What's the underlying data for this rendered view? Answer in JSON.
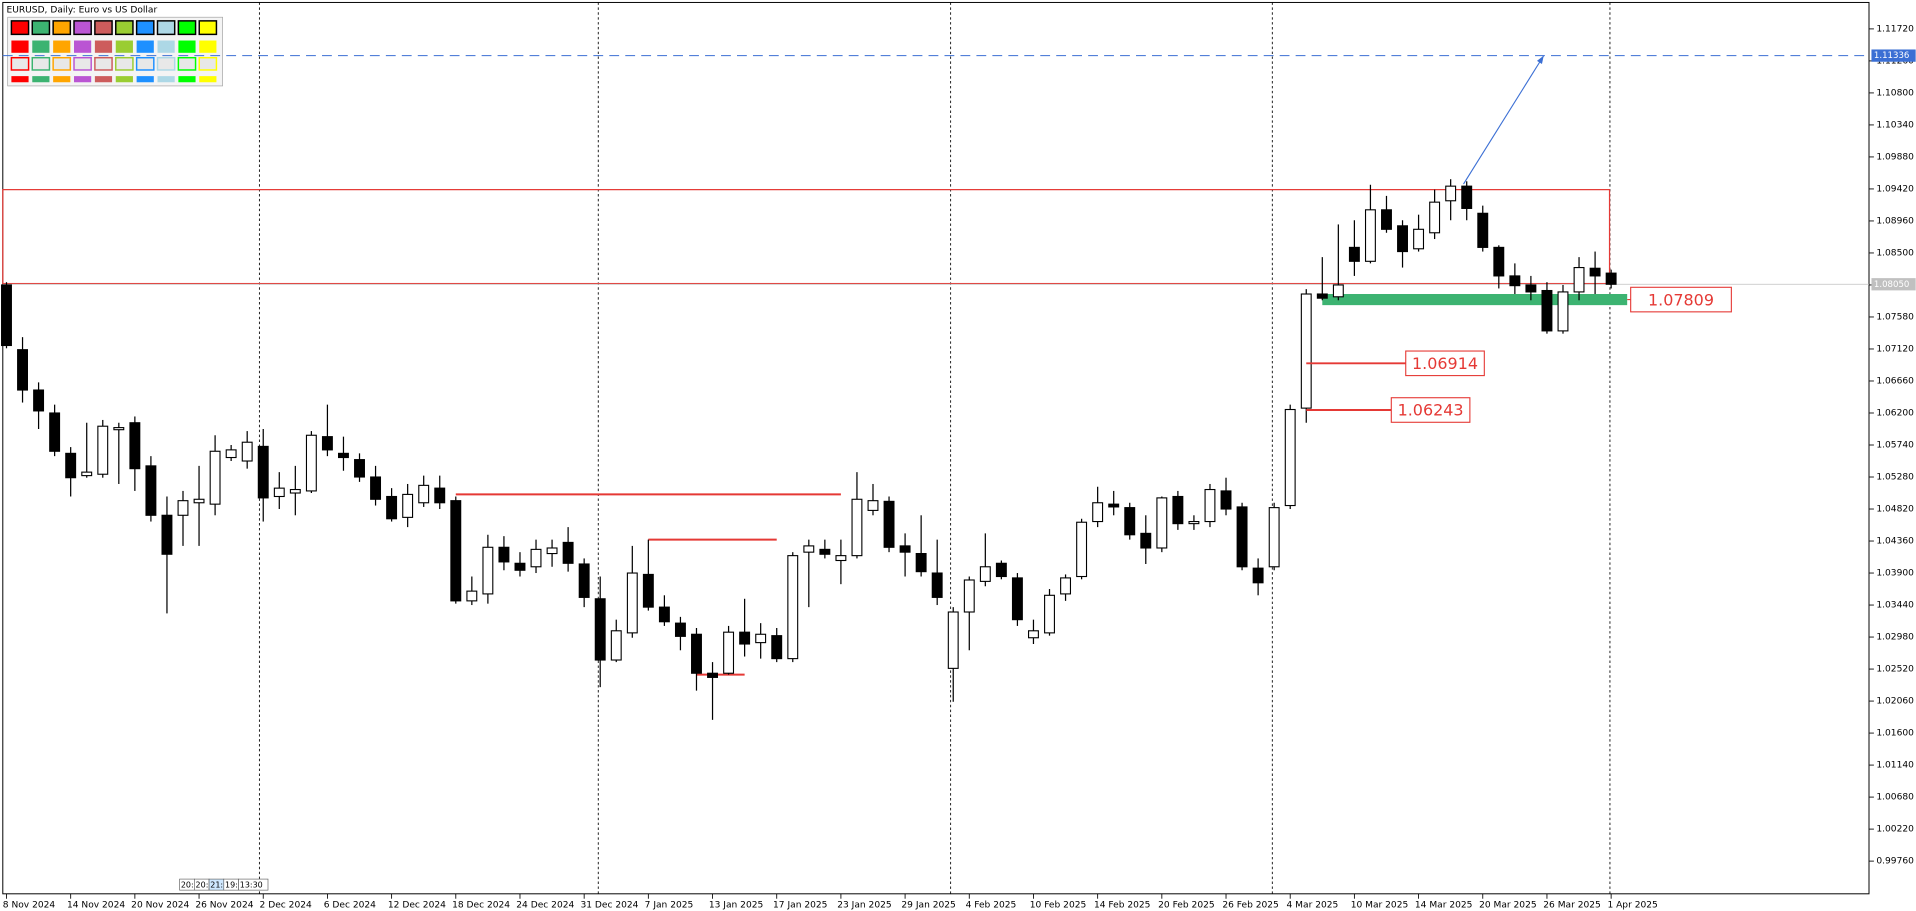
{
  "chart_data": {
    "type": "candlestick",
    "title": "EURUSD, Daily:  Euro vs US Dollar",
    "up_color": "#ffffff",
    "down_color": "#000000",
    "open": [
      1.0804,
      1.0711,
      1.0653,
      1.062,
      1.0562,
      1.053,
      1.0532,
      1.0596,
      1.0606,
      1.0544,
      1.0473,
      1.0473,
      1.0491,
      1.0489,
      1.0556,
      1.0551,
      1.0572,
      1.05,
      1.0505,
      1.0508,
      1.0586,
      1.0562,
      1.0553,
      1.0528,
      1.05,
      1.047,
      1.0491,
      1.0512,
      1.0494,
      1.035,
      1.036,
      1.0427,
      1.0404,
      1.0399,
      1.0418,
      1.0434,
      1.0403,
      1.0353,
      1.0265,
      1.0304,
      1.0388,
      1.0341,
      1.0318,
      1.0302,
      1.0246,
      1.0246,
      1.0305,
      1.029,
      1.03,
      1.0267,
      1.042,
      1.0424,
      1.0408,
      1.0415,
      1.048,
      1.0493,
      1.0429,
      1.0418,
      1.039,
      1.0253,
      1.0334,
      1.0378,
      1.0404,
      1.0383,
      1.0297,
      1.0304,
      1.036,
      1.0385,
      1.0464,
      1.0489,
      1.0484,
      1.0447,
      1.0426,
      1.05,
      1.0461,
      1.0464,
      1.0508,
      1.0485,
      1.0397,
      1.0399,
      1.0487,
      1.0627,
      1.0791,
      1.0787,
      1.0858,
      1.0838,
      1.0912,
      1.0889,
      1.0856,
      1.0879,
      1.0925,
      1.0946,
      1.0907,
      1.0858,
      1.0817,
      1.0804,
      1.0796,
      1.0738,
      1.0794,
      1.0828,
      1.0821
    ],
    "high": [
      1.0808,
      1.0729,
      1.0664,
      1.0632,
      1.0571,
      1.0606,
      1.061,
      1.0606,
      1.0615,
      1.0558,
      1.05,
      1.0508,
      1.0544,
      1.0588,
      1.0574,
      1.0594,
      1.0597,
      1.0535,
      1.0544,
      1.0594,
      1.0632,
      1.0586,
      1.0562,
      1.0544,
      1.0512,
      1.0518,
      1.053,
      1.053,
      1.05,
      1.0385,
      1.0445,
      1.0443,
      1.042,
      1.0438,
      1.0438,
      1.0456,
      1.0411,
      1.0385,
      1.0323,
      1.0429,
      1.0438,
      1.0358,
      1.0327,
      1.0311,
      1.0262,
      1.0314,
      1.0353,
      1.0318,
      1.0311,
      1.042,
      1.0438,
      1.0438,
      1.0438,
      1.0535,
      1.0518,
      1.05,
      1.0447,
      1.0473,
      1.0438,
      1.0341,
      1.0385,
      1.0447,
      1.0408,
      1.039,
      1.0323,
      1.0367,
      1.0388,
      1.0468,
      1.0514,
      1.0508,
      1.0491,
      1.0473,
      1.05,
      1.0508,
      1.0473,
      1.0518,
      1.0527,
      1.0491,
      1.0411,
      1.0491,
      1.0632,
      1.0798,
      1.0844,
      1.0891,
      1.0897,
      1.0948,
      1.0932,
      1.0897,
      1.0905,
      1.0941,
      1.0956,
      1.0953,
      1.0918,
      1.0861,
      1.0835,
      1.0817,
      1.0808,
      1.0804,
      1.0844,
      1.0852,
      1.0826
    ],
    "low": [
      1.0713,
      1.0635,
      1.0597,
      1.0558,
      1.05,
      1.0527,
      1.0527,
      1.0518,
      1.0508,
      1.0464,
      1.0332,
      1.0429,
      1.0429,
      1.0473,
      1.0551,
      1.054,
      1.0464,
      1.0482,
      1.0473,
      1.0505,
      1.0558,
      1.0537,
      1.0521,
      1.0487,
      1.0464,
      1.0456,
      1.0485,
      1.0482,
      1.0346,
      1.0344,
      1.0346,
      1.0394,
      1.0385,
      1.039,
      1.0399,
      1.0392,
      1.0341,
      1.0226,
      1.0262,
      1.0297,
      1.0336,
      1.0314,
      1.0279,
      1.0221,
      1.0179,
      1.0244,
      1.027,
      1.0267,
      1.0262,
      1.0262,
      1.0341,
      1.0411,
      1.0374,
      1.0411,
      1.0473,
      1.042,
      1.0385,
      1.0385,
      1.0344,
      1.0205,
      1.0279,
      1.0371,
      1.0381,
      1.0314,
      1.0288,
      1.03,
      1.035,
      1.0381,
      1.0456,
      1.0473,
      1.0438,
      1.0403,
      1.042,
      1.0452,
      1.0452,
      1.0456,
      1.0473,
      1.0394,
      1.0358,
      1.0394,
      1.0482,
      1.0606,
      1.0782,
      1.0782,
      1.0817,
      1.0835,
      1.0879,
      1.0829,
      1.0852,
      1.087,
      1.0897,
      1.0897,
      1.0852,
      1.0799,
      1.0791,
      1.0782,
      1.0734,
      1.0734,
      1.0782,
      1.0791,
      1.0799
    ],
    "close": [
      1.0717,
      1.0653,
      1.0623,
      1.0565,
      1.0527,
      1.0535,
      1.0601,
      1.0599,
      1.054,
      1.0473,
      1.0417,
      1.0494,
      1.0496,
      1.0565,
      1.0567,
      1.0578,
      1.0498,
      1.0512,
      1.051,
      1.0588,
      1.0567,
      1.0556,
      1.0528,
      1.0496,
      1.0468,
      1.0503,
      1.0516,
      1.0491,
      1.035,
      1.0364,
      1.0427,
      1.0406,
      1.0394,
      1.0424,
      1.0426,
      1.0404,
      1.0355,
      1.0265,
      1.0307,
      1.039,
      1.0341,
      1.032,
      1.0299,
      1.0246,
      1.024,
      1.0305,
      1.0288,
      1.0302,
      1.0267,
      1.0415,
      1.0429,
      1.0417,
      1.0415,
      1.0496,
      1.0494,
      1.0427,
      1.042,
      1.0392,
      1.0355,
      1.0334,
      1.038,
      1.0399,
      1.0385,
      1.0323,
      1.0307,
      1.0358,
      1.0383,
      1.0463,
      1.0491,
      1.0485,
      1.0445,
      1.0426,
      1.0498,
      1.0461,
      1.0464,
      1.051,
      1.0482,
      1.0399,
      1.0376,
      1.0484,
      1.0625,
      1.0791,
      1.0785,
      1.0804,
      1.0838,
      1.0912,
      1.0884,
      1.0852,
      1.0884,
      1.0923,
      1.0946,
      1.0914,
      1.0858,
      1.0817,
      1.0803,
      1.0794,
      1.0738,
      1.0794,
      1.0829,
      1.0817,
      1.0805
    ],
    "xlim": [
      -0.23,
      116.07
    ],
    "xticks": [
      {
        "value": 0,
        "label": "8 Nov 2024"
      },
      {
        "value": 4,
        "label": "14 Nov 2024"
      },
      {
        "value": 8,
        "label": "20 Nov 2024"
      },
      {
        "value": 12,
        "label": "26 Nov 2024"
      },
      {
        "value": 16,
        "label": "2 Dec 2024"
      },
      {
        "value": 20,
        "label": "6 Dec 2024"
      },
      {
        "value": 24,
        "label": "12 Dec 2024"
      },
      {
        "value": 28,
        "label": "18 Dec 2024"
      },
      {
        "value": 32,
        "label": "24 Dec 2024"
      },
      {
        "value": 36,
        "label": "31 Dec 2024"
      },
      {
        "value": 40,
        "label": "7 Jan 2025"
      },
      {
        "value": 44,
        "label": "13 Jan 2025"
      },
      {
        "value": 48,
        "label": "17 Jan 2025"
      },
      {
        "value": 52,
        "label": "23 Jan 2025"
      },
      {
        "value": 56,
        "label": "29 Jan 2025"
      },
      {
        "value": 60,
        "label": "4 Feb 2025"
      },
      {
        "value": 64,
        "label": "10 Feb 2025"
      },
      {
        "value": 68,
        "label": "14 Feb 2025"
      },
      {
        "value": 72,
        "label": "20 Feb 2025"
      },
      {
        "value": 76,
        "label": "26 Feb 2025"
      },
      {
        "value": 80,
        "label": "4 Mar 2025"
      },
      {
        "value": 84,
        "label": "10 Mar 2025"
      },
      {
        "value": 88,
        "label": "14 Mar 2025"
      },
      {
        "value": 92,
        "label": "20 Mar 2025"
      },
      {
        "value": 96,
        "label": "26 Mar 2025"
      },
      {
        "value": 100,
        "label": "1 Apr 2025"
      }
    ],
    "ylim": [
      0.9929,
      1.121
    ],
    "yticks": [
      {
        "value": 1.1172,
        "label": "1.11720"
      },
      {
        "value": 1.1126,
        "label": "1.11260"
      },
      {
        "value": 1.108,
        "label": "1.10800"
      },
      {
        "value": 1.1034,
        "label": "1.10340"
      },
      {
        "value": 1.0988,
        "label": "1.09880"
      },
      {
        "value": 1.0942,
        "label": "1.09420"
      },
      {
        "value": 1.0896,
        "label": "1.08960"
      },
      {
        "value": 1.085,
        "label": "1.08500"
      },
      {
        "value": 1.0804,
        "label": "1.08040"
      },
      {
        "value": 1.0758,
        "label": "1.07580"
      },
      {
        "value": 1.0712,
        "label": "1.07120"
      },
      {
        "value": 1.0666,
        "label": "1.06660"
      },
      {
        "value": 1.062,
        "label": "1.06200"
      },
      {
        "value": 1.0574,
        "label": "1.05740"
      },
      {
        "value": 1.0528,
        "label": "1.05280"
      },
      {
        "value": 1.0482,
        "label": "1.04820"
      },
      {
        "value": 1.0436,
        "label": "1.04360"
      },
      {
        "value": 1.039,
        "label": "1.03900"
      },
      {
        "value": 1.0344,
        "label": "1.03440"
      },
      {
        "value": 1.0298,
        "label": "1.02980"
      },
      {
        "value": 1.0252,
        "label": "1.02520"
      },
      {
        "value": 1.0206,
        "label": "1.02060"
      },
      {
        "value": 1.016,
        "label": "1.01600"
      },
      {
        "value": 1.0114,
        "label": "1.01140"
      },
      {
        "value": 1.0068,
        "label": "1.00680"
      },
      {
        "value": 1.0022,
        "label": "1.00220"
      },
      {
        "value": 0.9976,
        "label": "0.99760"
      }
    ],
    "current_price": {
      "value": 1.0805,
      "label": "1.08050"
    },
    "target": 1.11336,
    "target_color": "#3b6fd4",
    "arrow": {
      "from": [
        90.8,
        1.0949
      ],
      "to": [
        95.8,
        1.11336
      ]
    },
    "box": {
      "from": -0.23,
      "to": 99.9,
      "top": 1.0941,
      "bottom": 1.0806,
      "color": "#e53935"
    },
    "zone": {
      "from": 82,
      "to": 101,
      "top": 1.0791,
      "bottom": 1.0775,
      "color": "#3cb371",
      "price": 1.07809,
      "label_at": 100.3
    },
    "lines": [
      {
        "price": 1.0503,
        "from": 28,
        "to": 52
      },
      {
        "price": 1.0438,
        "from": 40,
        "to": 48
      },
      {
        "price": 1.0244,
        "from": 43,
        "to": 46
      }
    ],
    "levels": [
      {
        "price": 1.06914,
        "from": 81,
        "to": 87.2
      },
      {
        "price": 1.06243,
        "from": 81,
        "to": 86.3
      }
    ],
    "level_color": "#e53935",
    "period_tabs": [
      "20:",
      "20:",
      "21:",
      "19:",
      "13:30"
    ]
  }
}
